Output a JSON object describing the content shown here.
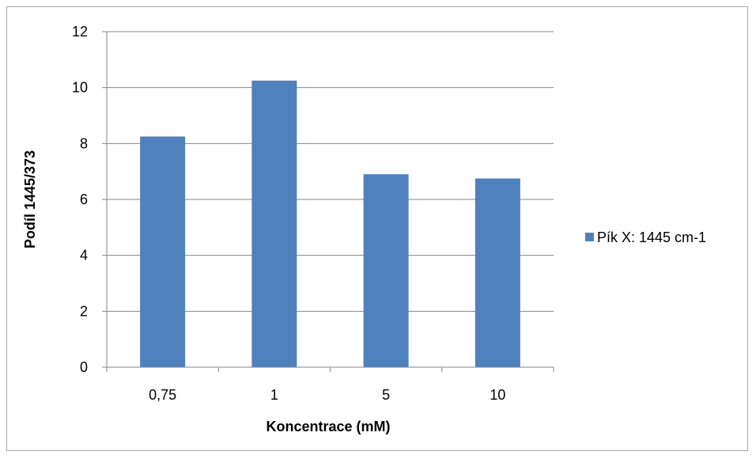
{
  "chart_data": {
    "type": "bar",
    "categories": [
      "0,75",
      "1",
      "5",
      "10"
    ],
    "series": [
      {
        "name": "Pík X: 1445 cm-1",
        "values": [
          8.25,
          10.25,
          6.9,
          6.75
        ],
        "color": "#4f81bd"
      }
    ],
    "title": "",
    "xlabel": "Koncentrace (mM)",
    "ylabel": "Podíl 1445/373",
    "ylim": [
      0,
      12
    ],
    "yticks": [
      "0",
      "2",
      "4",
      "6",
      "8",
      "10",
      "12"
    ],
    "grid": true,
    "legend_position": "right",
    "colors": {
      "bar": "#4f81bd",
      "grid": "#868686",
      "axis": "#868686",
      "frame": "#a6a6a6"
    }
  }
}
